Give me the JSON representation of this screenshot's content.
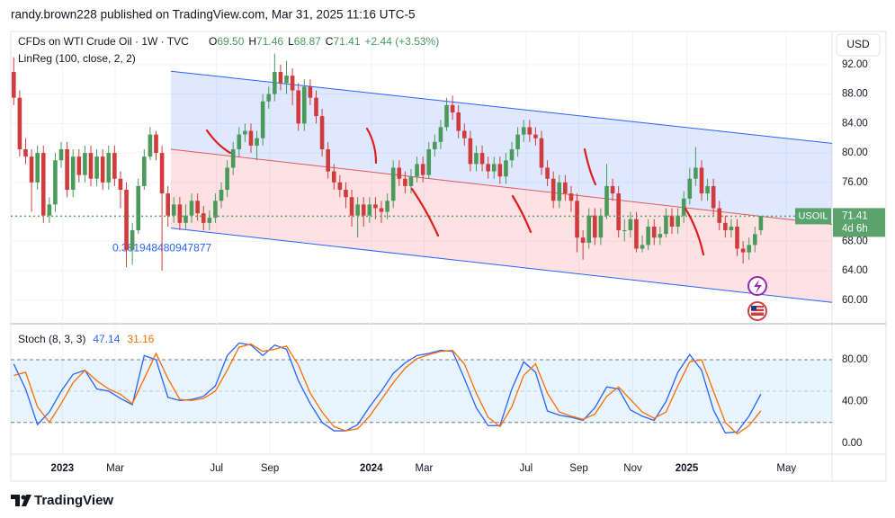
{
  "header": {
    "title": "randy.brown228 published on TradingView.com, Mar 31, 2025 11:16 UTC-5"
  },
  "footer": {
    "brand": "TradingView"
  },
  "chart_data": {
    "type": "candlestick",
    "currency": "USD",
    "symbol_title": "CFDs on WTI Crude Oil · 1W · TVC",
    "legend_values": [
      {
        "key": "O",
        "value": "69.50"
      },
      {
        "key": "H",
        "value": "71.46"
      },
      {
        "key": "L",
        "value": "68.87"
      },
      {
        "key": "C",
        "value": "71.41"
      },
      {
        "key": "",
        "value": "+2.44 (+3.53%)"
      }
    ],
    "indicator_title": "LinReg (100, close, 2, 2)",
    "up_color": "#4a9a5c",
    "down_color": "#d23b3b",
    "open": [
      91,
      87.5,
      80.5,
      79.5,
      76,
      80,
      71.5,
      73,
      79,
      80.5,
      75,
      79.5,
      77,
      80,
      76.5,
      79.5,
      76,
      80,
      76.5,
      75,
      66.8,
      69.5,
      75.5,
      79.5,
      82.5,
      80,
      74.5,
      71.5,
      73,
      70.5,
      71.5,
      73.5,
      71.8,
      70.5,
      71.2,
      73.5,
      75,
      78,
      80.5,
      82.5,
      83,
      81,
      82,
      87,
      88,
      91,
      89.5,
      90.5,
      88.5,
      84,
      89,
      87.5,
      85,
      80.5,
      77.5,
      76,
      75,
      74,
      71.5,
      73,
      71.5,
      73,
      72.5,
      72,
      73.5,
      78,
      76.5,
      75.5,
      76.8,
      78.5,
      77,
      80.5,
      81.5,
      83.5,
      86.5,
      85.5,
      83,
      82,
      78.5,
      80,
      78.5,
      77.5,
      78.5,
      76.8,
      79,
      80.5,
      82.5,
      83.5,
      82.5,
      82,
      78,
      76.5,
      73.5,
      76,
      74.5,
      73.5,
      68.5,
      67.8,
      71.5,
      68.5,
      71.5,
      75.5,
      74.5,
      69.5,
      69.5,
      71,
      67,
      67.5,
      70,
      68.5,
      69,
      71.5,
      70,
      71.5,
      73.8,
      76.5,
      78,
      74.5,
      75.5,
      72.5,
      70.5,
      69.5,
      70,
      67,
      66.5,
      67.5,
      69.5
    ],
    "high": [
      93,
      88.5,
      82,
      80.5,
      81,
      81,
      74,
      80,
      81.5,
      81.5,
      80.5,
      80.5,
      81,
      81,
      80.5,
      80.5,
      81,
      81,
      77.5,
      76,
      70.5,
      76.5,
      80.5,
      83.5,
      83,
      81,
      75.5,
      74,
      74,
      73,
      74.5,
      74.5,
      72.8,
      72.2,
      74.5,
      76,
      79,
      81.5,
      83.5,
      84,
      84,
      83,
      88,
      89,
      93.5,
      92,
      92.5,
      91.5,
      89.5,
      90,
      90,
      88.5,
      86,
      81.5,
      78.5,
      77,
      76,
      75,
      74,
      74,
      74,
      74,
      73.5,
      74.5,
      79,
      79,
      77.5,
      77.8,
      79.5,
      79.5,
      81.5,
      82.5,
      84.5,
      87.5,
      87.8,
      86.5,
      84,
      83,
      81,
      81,
      79.5,
      79.5,
      79.5,
      80,
      81.5,
      83.5,
      84.5,
      84.5,
      83.5,
      83,
      79,
      77.5,
      77,
      77,
      75.5,
      74.5,
      69.5,
      72.5,
      72.5,
      72.5,
      78.5,
      76.5,
      75.5,
      71,
      72,
      72,
      68.8,
      71,
      71,
      70,
      72.5,
      72.5,
      72.5,
      74.8,
      78,
      80.8,
      79,
      76.5,
      76.5,
      73.5,
      71.5,
      71,
      71,
      68,
      68.5,
      70,
      71.46
    ],
    "low": [
      86.5,
      79.5,
      78.5,
      72,
      75,
      70.5,
      70.5,
      72,
      78,
      74,
      74,
      76,
      76,
      75.5,
      75.5,
      75,
      75,
      75.5,
      72.5,
      64.5,
      64.8,
      69,
      75,
      79,
      79,
      64,
      70,
      70.5,
      69.5,
      69.5,
      70.5,
      70.8,
      69.5,
      69.5,
      70.5,
      72.5,
      74,
      77,
      79.5,
      81.5,
      80,
      79,
      81,
      86,
      87,
      88.5,
      88,
      86.5,
      83,
      83,
      86.5,
      84,
      79.5,
      76.5,
      75,
      74,
      72.5,
      70,
      68.5,
      70,
      70.5,
      71,
      70.5,
      71,
      72.5,
      75.5,
      74.5,
      74.5,
      76,
      76,
      76.5,
      79.5,
      80.5,
      83,
      84.5,
      82,
      81,
      77.5,
      77.5,
      77.5,
      76.5,
      76.5,
      75.8,
      75.8,
      78,
      79.5,
      81.5,
      81.5,
      81,
      77,
      75.5,
      72.5,
      72.5,
      73.5,
      72,
      66.5,
      65.5,
      67,
      67.5,
      67.5,
      71,
      73.5,
      68.5,
      68,
      68.5,
      66.5,
      66.5,
      66.8,
      67.5,
      67.5,
      68.5,
      69,
      69,
      70.5,
      73,
      75.5,
      73.5,
      73.5,
      71.5,
      69.5,
      68.5,
      68.5,
      66,
      65,
      65.5,
      66.5,
      68.87
    ],
    "close": [
      87.5,
      80.5,
      79.5,
      76,
      80,
      71.5,
      73,
      79,
      80.5,
      75,
      79.5,
      77,
      80,
      76.5,
      79.5,
      76,
      80,
      76.5,
      75,
      66.8,
      69.5,
      75.5,
      79.5,
      82.5,
      80,
      74.5,
      71.5,
      73,
      70.5,
      71.5,
      73.5,
      71.8,
      70.5,
      71.2,
      73.5,
      75,
      78,
      80.5,
      82.5,
      83,
      81,
      82,
      87,
      88,
      91,
      89.5,
      90.5,
      88.5,
      84,
      89,
      87.5,
      85,
      80.5,
      77.5,
      76,
      75,
      74,
      71.5,
      73,
      71.5,
      73,
      72.5,
      72,
      73.5,
      78,
      76.5,
      75.5,
      76.8,
      78.5,
      77,
      80.5,
      81.5,
      83.5,
      86.5,
      85.5,
      83,
      82,
      78.5,
      80,
      78.5,
      77.5,
      78.5,
      76.8,
      79,
      80.5,
      82.5,
      83.5,
      82.5,
      82,
      78,
      76.5,
      73.5,
      76,
      74.5,
      73.5,
      68.5,
      67.8,
      71.5,
      68.5,
      71.5,
      75.5,
      74.5,
      69.5,
      69.5,
      71,
      67,
      67.5,
      70,
      68.5,
      69,
      71.5,
      70,
      71.5,
      73.8,
      76.5,
      78,
      74.5,
      75.5,
      72.5,
      70.5,
      69.5,
      70,
      67,
      66.5,
      67.5,
      68.97,
      71.41
    ],
    "price_label": {
      "symbol": "USOIL",
      "countdown": "4d 6h",
      "color": "#5aa36c"
    },
    "channel": {
      "x": [
        26.5,
        138
      ],
      "upper": [
        91.1,
        81.3
      ],
      "middle": [
        80.5,
        70.3
      ],
      "lower": [
        69.8,
        59.7
      ],
      "label": "0.381948480947877",
      "line_color": "#2962ff",
      "mid_color": "#e05a5a"
    },
    "xlim": [
      -0.5,
      138
    ],
    "xticks": [
      {
        "value": 8.2,
        "label": "2023"
      },
      {
        "value": 17.1,
        "label": "Mar"
      },
      {
        "value": 34.2,
        "label": "Jul"
      },
      {
        "value": 43.2,
        "label": "Sep"
      },
      {
        "value": 60.3,
        "label": "2024"
      },
      {
        "value": 69.2,
        "label": "Mar"
      },
      {
        "value": 86.4,
        "label": "Jul"
      },
      {
        "value": 95.3,
        "label": "Sep"
      },
      {
        "value": 104.4,
        "label": "Nov"
      },
      {
        "value": 113.5,
        "label": "2025"
      },
      {
        "value": 130.3,
        "label": "May"
      }
    ],
    "ylim": [
      56.8,
      96.5
    ],
    "yticks": [
      {
        "value": 92,
        "label": "92.00"
      },
      {
        "value": 88,
        "label": "88.00"
      },
      {
        "value": 84,
        "label": "84.00"
      },
      {
        "value": 80,
        "label": "80.00"
      },
      {
        "value": 76,
        "label": "76.00"
      },
      {
        "value": 68,
        "label": "68.00"
      },
      {
        "value": 64,
        "label": "64.00"
      },
      {
        "value": 60,
        "label": "60.00"
      }
    ],
    "grid": true,
    "stoch": {
      "title": "Stoch (8, 3, 3)",
      "x": [
        0,
        2,
        4,
        6,
        8,
        10,
        12,
        14,
        16,
        18,
        20,
        22,
        24,
        26,
        28,
        30,
        32,
        34,
        36,
        38,
        40,
        42,
        44,
        46,
        48,
        50,
        52,
        54,
        56,
        58,
        60,
        62,
        64,
        66,
        68,
        70,
        72,
        74,
        76,
        78,
        80,
        82,
        84,
        86,
        88,
        90,
        92,
        94,
        96,
        98,
        100,
        102,
        104,
        106,
        108,
        110,
        112,
        114,
        116,
        118,
        120,
        122,
        124,
        126
      ],
      "series": [
        {
          "name": "K",
          "color": "#2962ff",
          "values": [
            76,
            52,
            18,
            30,
            50,
            66,
            70,
            52,
            50,
            43,
            37,
            84,
            80,
            44,
            41,
            42,
            45,
            55,
            84,
            96,
            94,
            84,
            94,
            90,
            60,
            38,
            20,
            12,
            12,
            18,
            35,
            50,
            67,
            77,
            84,
            86,
            89,
            88,
            62,
            34,
            17,
            17,
            52,
            78,
            68,
            31,
            27,
            25,
            22,
            34,
            54,
            52,
            32,
            26,
            22,
            40,
            68,
            85,
            70,
            32,
            10,
            11,
            26,
            47.14
          ]
        },
        {
          "name": "D",
          "color": "#ff6d00",
          "values": [
            65,
            68,
            35,
            20,
            38,
            58,
            70,
            60,
            52,
            47,
            38,
            62,
            86,
            62,
            42,
            41,
            43,
            50,
            70,
            92,
            95,
            88,
            90,
            93,
            75,
            48,
            30,
            16,
            12,
            14,
            26,
            42,
            58,
            72,
            81,
            85,
            88,
            89,
            76,
            48,
            25,
            16,
            35,
            65,
            76,
            48,
            30,
            26,
            23,
            28,
            45,
            54,
            42,
            30,
            24,
            30,
            55,
            78,
            80,
            50,
            20,
            9,
            17,
            31.16
          ]
        }
      ],
      "upper_band": 80,
      "middle_band": 50,
      "lower_band": 20,
      "ylim": [
        -10.3,
        112.7
      ],
      "yticks": [
        {
          "value": 80,
          "label": "80.00"
        },
        {
          "value": 40,
          "label": "40.00"
        },
        {
          "value": 0,
          "label": "0.00"
        }
      ]
    }
  }
}
